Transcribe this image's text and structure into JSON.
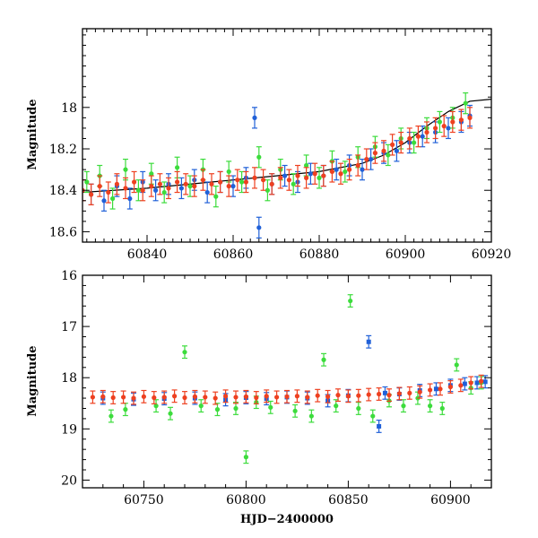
{
  "chart_data": [
    {
      "type": "scatter",
      "panel": "top",
      "title": "",
      "xlabel": "",
      "ylabel": "Magnitude",
      "xlim": [
        60825,
        60920
      ],
      "ylim": [
        18.65,
        17.62
      ],
      "y_inverted": true,
      "x_ticks": [
        60840,
        60860,
        60880,
        60900,
        60920
      ],
      "y_ticks": [
        18,
        18.2,
        18.4,
        18.6
      ],
      "x_ticklabels": [
        "60840",
        "60860",
        "60880",
        "60900",
        "60920"
      ],
      "y_ticklabels": [
        "18",
        "18.2",
        "18.4",
        "18.6"
      ],
      "grid": false,
      "legend": "none",
      "series": [
        {
          "color": "#2060d8",
          "marker": "circle",
          "error_bars": true,
          "x": [
            60827,
            60830,
            60833,
            60836,
            60839,
            60842,
            60845,
            60848,
            60851,
            60854,
            60857,
            60860,
            60863,
            60865,
            60866,
            60869,
            60872,
            60875,
            60878,
            60881,
            60884,
            60887,
            60890,
            60892,
            60895,
            60898,
            60901,
            60904,
            60907,
            60910,
            60913,
            60915
          ],
          "y": [
            18.42,
            18.45,
            18.38,
            18.44,
            18.36,
            18.4,
            18.37,
            18.39,
            18.35,
            18.41,
            18.36,
            18.38,
            18.34,
            18.05,
            18.58,
            18.37,
            18.33,
            18.36,
            18.32,
            18.33,
            18.3,
            18.28,
            18.3,
            18.25,
            18.22,
            18.21,
            18.17,
            18.14,
            18.12,
            18.1,
            18.07,
            18.04
          ]
        },
        {
          "color": "#3cdc3c",
          "marker": "circle",
          "error_bars": true,
          "x": [
            60826,
            60829,
            60832,
            60835,
            60838,
            60841,
            60844,
            60847,
            60850,
            60853,
            60856,
            60859,
            60862,
            60866,
            60868,
            60871,
            60874,
            60877,
            60880,
            60883,
            60886,
            60889,
            60893,
            60896,
            60899,
            60902,
            60905,
            60908,
            60911,
            60914
          ],
          "y": [
            18.36,
            18.33,
            18.44,
            18.3,
            18.4,
            18.32,
            18.41,
            18.29,
            18.38,
            18.3,
            18.43,
            18.31,
            18.36,
            18.24,
            18.4,
            18.3,
            18.37,
            18.28,
            18.34,
            18.26,
            18.31,
            18.24,
            18.19,
            18.23,
            18.15,
            18.17,
            18.1,
            18.07,
            18.05,
            17.98
          ]
        },
        {
          "color": "#ee4020",
          "marker": "circle",
          "error_bars": true,
          "x": [
            60825,
            60827,
            60829,
            60831,
            60833,
            60835,
            60837,
            60839,
            60841,
            60843,
            60845,
            60847,
            60849,
            60851,
            60853,
            60855,
            60857,
            60859,
            60861,
            60863,
            60865,
            60867,
            60869,
            60871,
            60873,
            60875,
            60877,
            60879,
            60881,
            60883,
            60885,
            60887,
            60889,
            60891,
            60893,
            60895,
            60897,
            60899,
            60901,
            60903,
            60905,
            60907,
            60909,
            60911,
            60913,
            60915
          ],
          "y": [
            18.4,
            18.42,
            18.38,
            18.41,
            18.37,
            18.39,
            18.36,
            18.4,
            18.38,
            18.37,
            18.39,
            18.36,
            18.37,
            18.38,
            18.35,
            18.37,
            18.36,
            18.38,
            18.35,
            18.36,
            18.34,
            18.35,
            18.37,
            18.34,
            18.35,
            18.33,
            18.34,
            18.32,
            18.33,
            18.31,
            18.32,
            18.3,
            18.28,
            18.25,
            18.22,
            18.21,
            18.18,
            18.17,
            18.15,
            18.14,
            18.12,
            18.1,
            18.09,
            18.07,
            18.06,
            18.05
          ]
        }
      ],
      "model_curve": {
        "color": "#000000",
        "x": [
          60825,
          60840,
          60855,
          60870,
          60880,
          60890,
          60895,
          60900,
          60905,
          60910,
          60915,
          60920
        ],
        "y": [
          18.41,
          18.39,
          18.36,
          18.33,
          18.31,
          18.27,
          18.23,
          18.17,
          18.09,
          18.02,
          17.97,
          17.96
        ]
      }
    },
    {
      "type": "scatter",
      "panel": "bottom",
      "title": "",
      "xlabel": "HJD−2400000",
      "ylabel": "Magnitude",
      "xlim": [
        60720,
        60920
      ],
      "ylim": [
        20.15,
        16.0
      ],
      "y_inverted": true,
      "x_ticks": [
        60750,
        60800,
        60850,
        60900
      ],
      "y_ticks": [
        16,
        17,
        18,
        19,
        20
      ],
      "x_ticklabels": [
        "60750",
        "60800",
        "60850",
        "60900"
      ],
      "y_ticklabels": [
        "16",
        "17",
        "18",
        "19",
        "20"
      ],
      "grid": false,
      "legend": "none",
      "series": [
        {
          "color": "#2060d8",
          "marker": "square",
          "error_bars": true,
          "x": [
            60730,
            60745,
            60760,
            60775,
            60790,
            60800,
            60810,
            60820,
            60830,
            60840,
            60850,
            60860,
            60865,
            60868,
            60875,
            60885,
            60893,
            60900,
            60907,
            60913,
            60917
          ],
          "y": [
            18.4,
            18.42,
            18.41,
            18.4,
            18.43,
            18.39,
            18.41,
            18.38,
            18.4,
            18.45,
            18.35,
            17.3,
            18.95,
            18.3,
            18.32,
            18.25,
            18.22,
            18.15,
            18.12,
            18.1,
            18.08
          ]
        },
        {
          "color": "#3cdc3c",
          "marker": "circle",
          "error_bars": true,
          "x": [
            60734,
            60741,
            60756,
            60763,
            60770,
            60778,
            60786,
            60795,
            60800,
            60805,
            60812,
            60824,
            60832,
            60838,
            60844,
            60851,
            60855,
            60862,
            60870,
            60877,
            60884,
            60890,
            60896,
            60903,
            60910,
            60915
          ],
          "y": [
            18.75,
            18.62,
            18.55,
            18.7,
            17.5,
            18.55,
            18.62,
            18.6,
            19.55,
            18.48,
            18.58,
            18.65,
            18.75,
            17.65,
            18.55,
            16.5,
            18.6,
            18.75,
            18.45,
            18.55,
            18.4,
            18.55,
            18.6,
            17.75,
            18.2,
            18.1
          ]
        },
        {
          "color": "#ee4020",
          "marker": "circle",
          "error_bars": true,
          "x": [
            60725,
            60730,
            60735,
            60740,
            60745,
            60750,
            60755,
            60760,
            60765,
            60770,
            60775,
            60780,
            60785,
            60790,
            60795,
            60800,
            60805,
            60810,
            60815,
            60820,
            60825,
            60830,
            60835,
            60840,
            60845,
            60850,
            60855,
            60860,
            60865,
            60870,
            60875,
            60880,
            60885,
            60890,
            60895,
            60900,
            60905,
            60910,
            60915
          ],
          "y": [
            18.38,
            18.37,
            18.39,
            18.38,
            18.4,
            18.37,
            18.39,
            18.38,
            18.36,
            18.39,
            18.37,
            18.38,
            18.4,
            18.36,
            18.38,
            18.37,
            18.39,
            18.36,
            18.38,
            18.37,
            18.36,
            18.38,
            18.35,
            18.37,
            18.34,
            18.36,
            18.35,
            18.33,
            18.32,
            18.34,
            18.31,
            18.3,
            18.28,
            18.24,
            18.22,
            18.18,
            18.15,
            18.1,
            18.07
          ]
        }
      ]
    }
  ]
}
